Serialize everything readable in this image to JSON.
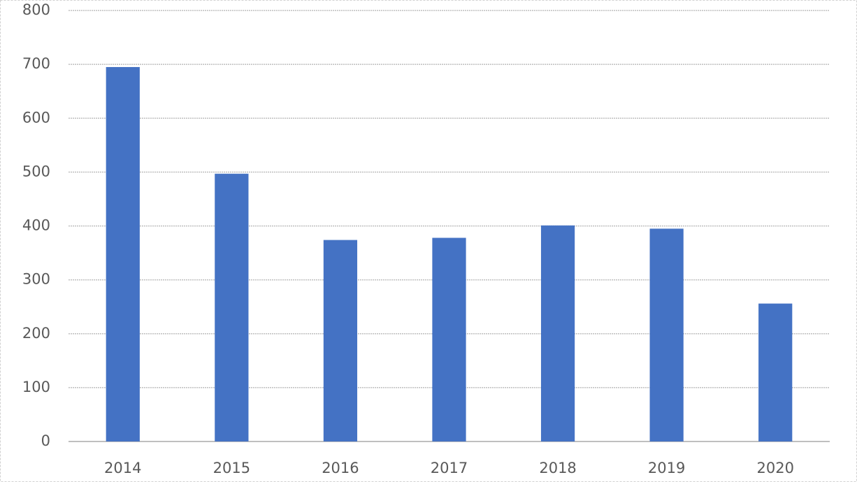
{
  "chart_data": {
    "type": "bar",
    "categories": [
      "2014",
      "2015",
      "2016",
      "2017",
      "2018",
      "2019",
      "2020"
    ],
    "values": [
      695,
      497,
      374,
      378,
      401,
      395,
      256
    ],
    "color": "#4472c4",
    "ylim": [
      0,
      800
    ],
    "yticks": [
      0,
      100,
      200,
      300,
      400,
      500,
      600,
      700,
      800
    ],
    "grid": true
  }
}
